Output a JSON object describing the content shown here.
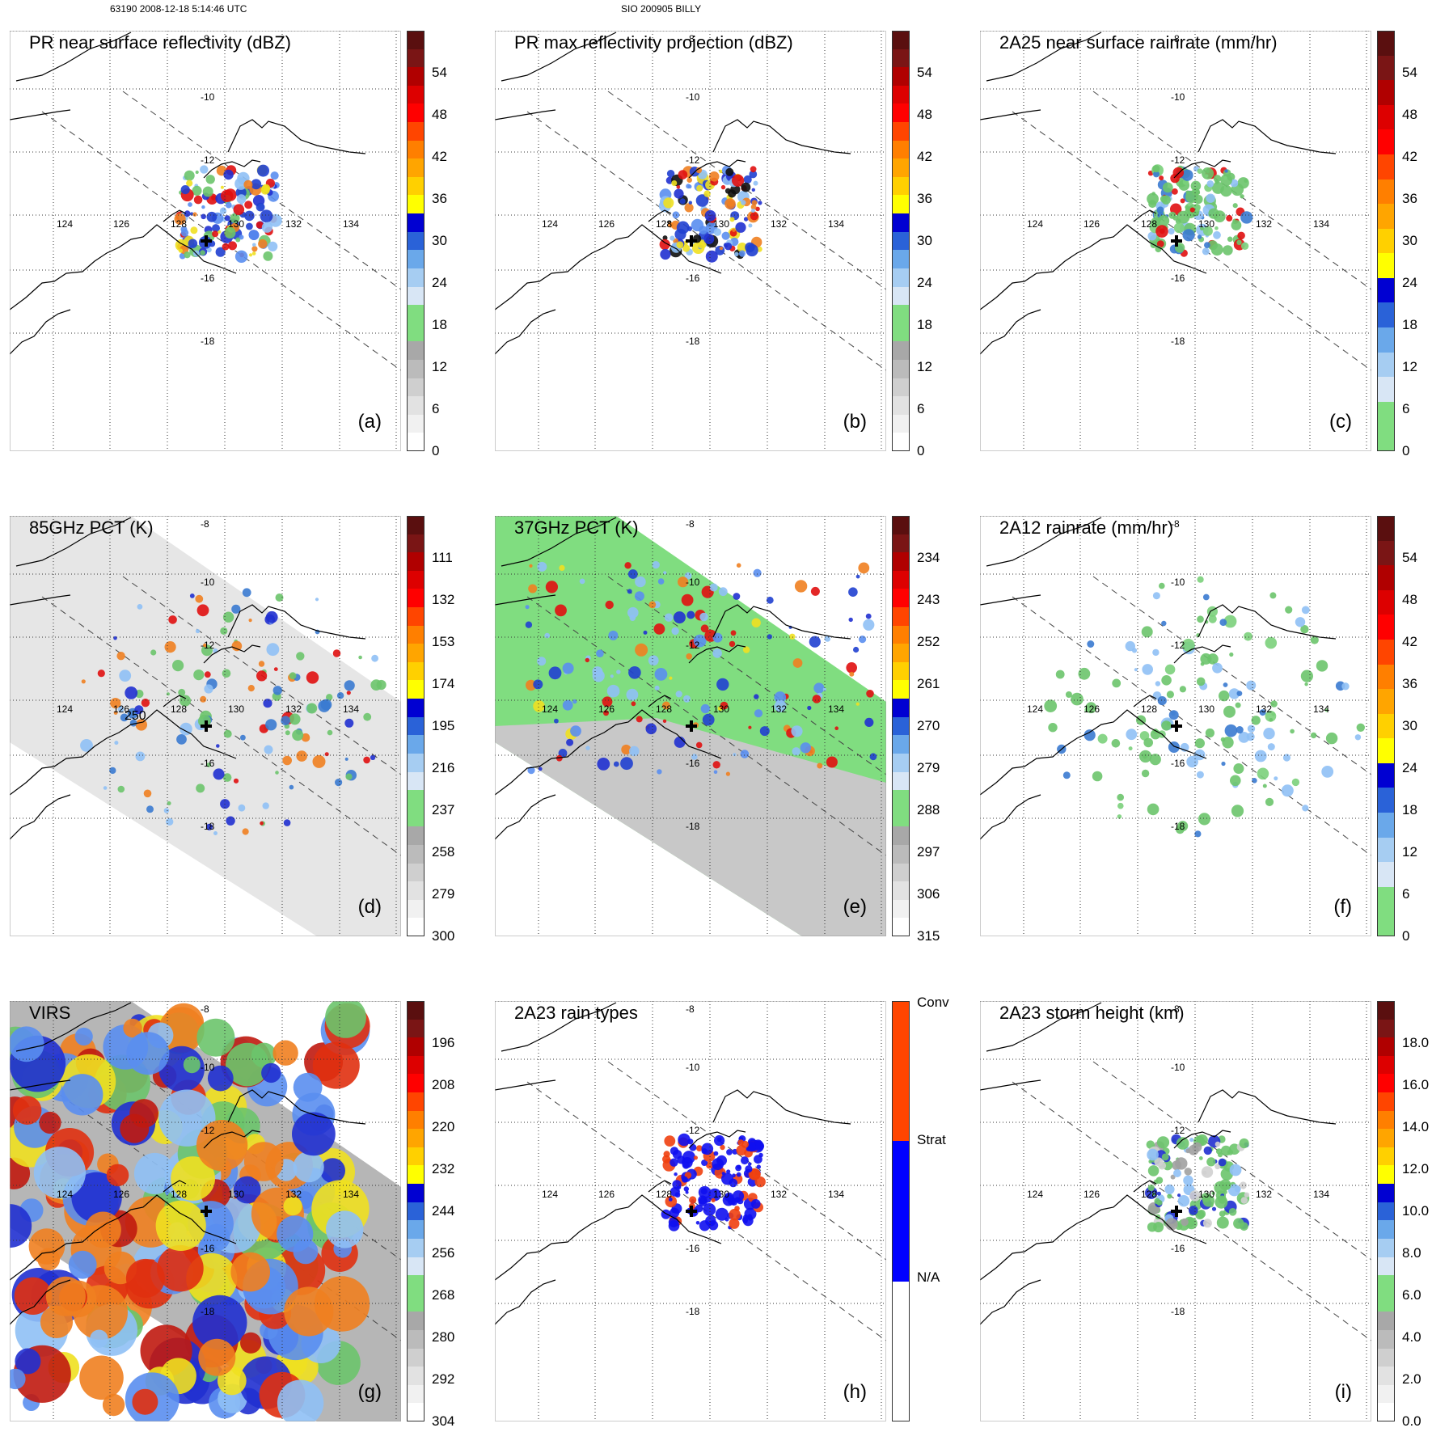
{
  "header": {
    "left": "63190 2008-12-18 5:14:46 UTC",
    "center": "SIO 200905 BILLY"
  },
  "map_labels": {
    "lon": [
      "124",
      "126",
      "128",
      "130",
      "132",
      "134"
    ],
    "lat": [
      "-8",
      "-10",
      "-12",
      "-16",
      "-18"
    ]
  },
  "panels": [
    {
      "id": "a",
      "title": "PR near surface reflectivity (dBZ)",
      "label": "(a)",
      "colorbar": [
        "54",
        "48",
        "42",
        "36",
        "30",
        "24",
        "18",
        "12",
        "6",
        "0"
      ],
      "field": "pr",
      "field_colors": [
        "#1f3fd0",
        "#5a8ef0",
        "#8fc0f5",
        "#2030d0",
        "#f08020",
        "#e01010",
        "#f0e020",
        "#6cc46c"
      ]
    },
    {
      "id": "b",
      "title": "PR max reflectivity projection (dBZ)",
      "label": "(b)",
      "colorbar": [
        "54",
        "48",
        "42",
        "36",
        "30",
        "24",
        "18",
        "12",
        "6",
        "0"
      ],
      "field": "pr",
      "field_colors": [
        "#1f3fd0",
        "#5a8ef0",
        "#f08020",
        "#e01010",
        "#f0e020",
        "#2030d0",
        "#101010",
        "#8fc0f5"
      ]
    },
    {
      "id": "c",
      "title": "2A25 near surface rainrate (mm/hr)",
      "label": "(c)",
      "colorbar": [
        "54",
        "48",
        "42",
        "36",
        "30",
        "24",
        "18",
        "12",
        "6",
        "0"
      ],
      "field": "pr",
      "field_colors": [
        "#6cc46c",
        "#7bd07b",
        "#6cc46c",
        "#3a7ad0",
        "#6cc46c",
        "#e01010",
        "#6cc46c",
        "#8fc0f5"
      ]
    },
    {
      "id": "d",
      "title": "85GHz PCT (K)",
      "label": "(d)",
      "colorbar": [
        "111",
        "132",
        "153",
        "174",
        "195",
        "216",
        "237",
        "258",
        "279",
        "300"
      ],
      "field": "pct85",
      "annotation": "250",
      "field_colors": [
        "#6cc46c",
        "#3a7ad0",
        "#8fc0f5",
        "#2030d0",
        "#e01010",
        "#6cc46c",
        "#f08020",
        "#6cc46c"
      ]
    },
    {
      "id": "e",
      "title": "37GHz PCT (K)",
      "label": "(e)",
      "colorbar": [
        "234",
        "243",
        "252",
        "261",
        "270",
        "279",
        "288",
        "297",
        "306",
        "315"
      ],
      "field": "pct37",
      "field_colors": [
        "#2040d0",
        "#5a8ef0",
        "#8fc0f5",
        "#2030d0",
        "#f08020",
        "#e01010",
        "#f0e020",
        "#8fc0f5"
      ]
    },
    {
      "id": "f",
      "title": "2A12 rainrate (mm/hr)",
      "label": "(f)",
      "colorbar": [
        "54",
        "48",
        "42",
        "36",
        "30",
        "24",
        "18",
        "12",
        "6",
        "0"
      ],
      "field": "tmi",
      "field_colors": [
        "#6cc46c",
        "#7bd07b",
        "#8fc0f5",
        "#6cc46c",
        "#6cc46c",
        "#3a7ad0",
        "#6cc46c",
        "#8fc0f5"
      ]
    },
    {
      "id": "g",
      "title": "VIRS",
      "label": "(g)",
      "colorbar": [
        "196",
        "208",
        "220",
        "232",
        "244",
        "256",
        "268",
        "280",
        "292",
        "304"
      ],
      "field": "virs",
      "field_colors": [
        "#c01a10",
        "#e03010",
        "#f08020",
        "#f0e020",
        "#2030d0",
        "#5a8ef0",
        "#8fc0f5",
        "#6cc46c"
      ]
    },
    {
      "id": "h",
      "title": "2A23 rain types",
      "label": "(h)",
      "colorbar": [
        "Conv",
        "Strat",
        "N/A"
      ],
      "field": "pr",
      "field_colors": [
        "#1010f0",
        "#1010f0",
        "#f04010",
        "#1010f0",
        "#1010f0",
        "#f04010",
        "#1010f0",
        "#1010f0"
      ]
    },
    {
      "id": "i",
      "title": "2A23 storm height (km)",
      "label": "(i)",
      "colorbar": [
        "18.0",
        "16.0",
        "14.0",
        "12.0",
        "10.0",
        "8.0",
        "6.0",
        "4.0",
        "2.0",
        "0.0"
      ],
      "field": "pr",
      "field_colors": [
        "#6cc46c",
        "#a0a0a0",
        "#6cc46c",
        "#8fc0f5",
        "#2030d0",
        "#6cc46c",
        "#d0d0d0",
        "#6cc46c"
      ]
    }
  ],
  "scales": {
    "rain": [
      "#80dd80",
      "#80dd80",
      "#d8e6f5",
      "#a6cdf2",
      "#6aa8ea",
      "#2a62d8",
      "#0000d2",
      "#ffff00",
      "#ffd000",
      "#ffa500",
      "#ff7f00",
      "#ff4500",
      "#ff0000",
      "#dd0000",
      "#b00000",
      "#7a1515",
      "#5a0f0f"
    ],
    "dbz": [
      "#ffffff",
      "#f1f1f1",
      "#e2e2e2",
      "#cfcfcf",
      "#bbbbbb",
      "#a8a8a8",
      "#80dd80",
      "#80dd80",
      "#d8e6f5",
      "#a6cdf2",
      "#6aa8ea",
      "#2a62d8",
      "#0000d2",
      "#ffff00",
      "#ffd000",
      "#ffa500",
      "#ff7f00",
      "#ff4500",
      "#ff0000",
      "#dd0000",
      "#b00000",
      "#7a1515",
      "#5a0f0f"
    ],
    "type": [
      "#ffffff",
      "#0000ff",
      "#ff4500"
    ]
  }
}
